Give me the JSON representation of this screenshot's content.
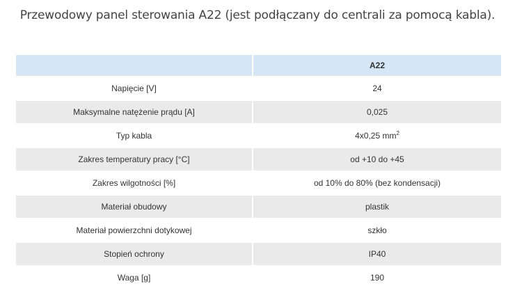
{
  "title": "Przewodowy panel sterowania A22 (jest podłączany do centrali za pomocą kabla).",
  "table": {
    "header": [
      "",
      "A22"
    ],
    "rows": [
      {
        "label": "Napięcie [V]",
        "value": "24"
      },
      {
        "label": "Maksymalne natężenie prądu [A]",
        "value": "0,025"
      },
      {
        "label": "Typ kabla",
        "value": "4x0,25 mm",
        "sup": "2"
      },
      {
        "label": "Zakres temperatury pracy [°C]",
        "value": "od +10 do +45"
      },
      {
        "label": "Zakres wilgotności [%]",
        "value": "od 10% do 80% (bez kondensacji)"
      },
      {
        "label": "Materiał obudowy",
        "value": "plastik"
      },
      {
        "label": "Materiał powierzchni dotykowej",
        "value": "szkło"
      },
      {
        "label": "Stopień ochrony",
        "value": "IP40"
      },
      {
        "label": "Waga [g]",
        "value": "190"
      }
    ]
  },
  "colors": {
    "header_bg": "#d5e6f5",
    "stripe_bg": "#eaeaea",
    "text": "#333333"
  }
}
